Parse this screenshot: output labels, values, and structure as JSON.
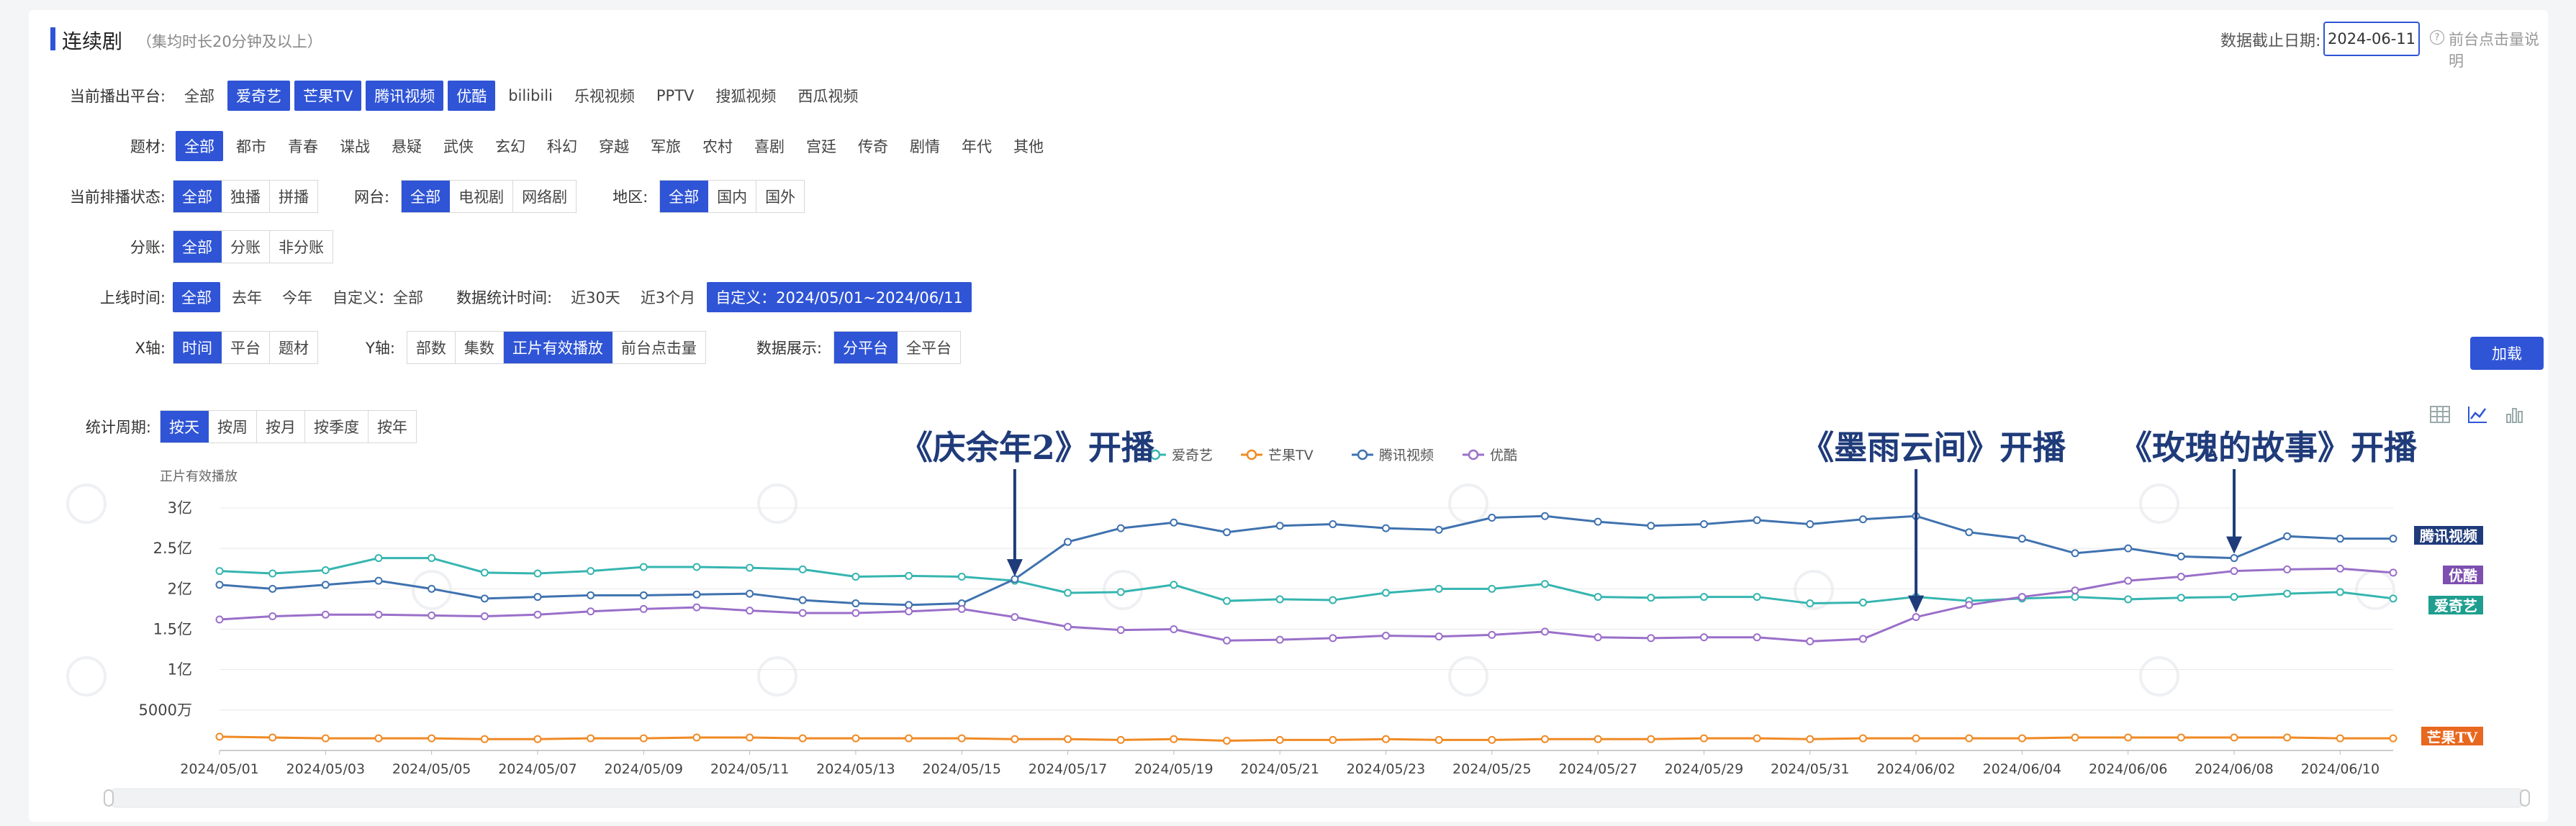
{
  "header": {
    "title": "连续剧",
    "subtitle": "（集均时长20分钟及以上）",
    "date_label": "数据截止日期:",
    "date_value": "2024-06-11",
    "help_text": "前台点击量说明"
  },
  "filters": {
    "platform": {
      "label": "当前播出平台:",
      "options": [
        {
          "text": "全部",
          "selected": false
        },
        {
          "text": "爱奇艺",
          "selected": true
        },
        {
          "text": "芒果TV",
          "selected": true
        },
        {
          "text": "腾讯视频",
          "selected": true
        },
        {
          "text": "优酷",
          "selected": true
        },
        {
          "text": "bilibili",
          "selected": false
        },
        {
          "text": "乐视视频",
          "selected": false
        },
        {
          "text": "PPTV",
          "selected": false
        },
        {
          "text": "搜狐视频",
          "selected": false
        },
        {
          "text": "西瓜视频",
          "selected": false
        }
      ]
    },
    "genre": {
      "label": "题材:",
      "options": [
        {
          "text": "全部",
          "selected": true
        },
        {
          "text": "都市",
          "selected": false
        },
        {
          "text": "青春",
          "selected": false
        },
        {
          "text": "谍战",
          "selected": false
        },
        {
          "text": "悬疑",
          "selected": false
        },
        {
          "text": "武侠",
          "selected": false
        },
        {
          "text": "玄幻",
          "selected": false
        },
        {
          "text": "科幻",
          "selected": false
        },
        {
          "text": "穿越",
          "selected": false
        },
        {
          "text": "军旅",
          "selected": false
        },
        {
          "text": "农村",
          "selected": false
        },
        {
          "text": "喜剧",
          "selected": false
        },
        {
          "text": "宫廷",
          "selected": false
        },
        {
          "text": "传奇",
          "selected": false
        },
        {
          "text": "剧情",
          "selected": false
        },
        {
          "text": "年代",
          "selected": false
        },
        {
          "text": "其他",
          "selected": false
        }
      ]
    },
    "status": {
      "label": "当前排播状态:",
      "options": [
        {
          "text": "全部",
          "selected": true
        },
        {
          "text": "独播",
          "selected": false
        },
        {
          "text": "拼播",
          "selected": false
        }
      ],
      "network_label": "网台:",
      "network_options": [
        {
          "text": "全部",
          "selected": true
        },
        {
          "text": "电视剧",
          "selected": false
        },
        {
          "text": "网络剧",
          "selected": false
        }
      ],
      "region_label": "地区:",
      "region_options": [
        {
          "text": "全部",
          "selected": true
        },
        {
          "text": "国内",
          "selected": false
        },
        {
          "text": "国外",
          "selected": false
        }
      ]
    },
    "split": {
      "label": "分账:",
      "options": [
        {
          "text": "全部",
          "selected": true
        },
        {
          "text": "分账",
          "selected": false
        },
        {
          "text": "非分账",
          "selected": false
        }
      ]
    },
    "online": {
      "label": "上线时间:",
      "options": [
        {
          "text": "全部",
          "selected": true
        },
        {
          "text": "去年",
          "selected": false
        },
        {
          "text": "今年",
          "selected": false
        },
        {
          "text": "自定义：全部",
          "selected": false
        }
      ],
      "stat_label": "数据统计时间:",
      "stat_options": [
        {
          "text": "近30天",
          "selected": false
        },
        {
          "text": "近3个月",
          "selected": false
        },
        {
          "text": "自定义：2024/05/01~2024/06/11",
          "selected": true
        }
      ]
    },
    "axes": {
      "x_label": "X轴:",
      "x_options": [
        {
          "text": "时间",
          "selected": true
        },
        {
          "text": "平台",
          "selected": false
        },
        {
          "text": "题材",
          "selected": false
        }
      ],
      "y_label": "Y轴:",
      "y_options": [
        {
          "text": "部数",
          "selected": false
        },
        {
          "text": "集数",
          "selected": false
        },
        {
          "text": "正片有效播放",
          "selected": true
        },
        {
          "text": "前台点击量",
          "selected": false
        }
      ],
      "display_label": "数据展示:",
      "display_options": [
        {
          "text": "分平台",
          "selected": true
        },
        {
          "text": "全平台",
          "selected": false
        }
      ]
    },
    "period": {
      "label": "统计周期:",
      "options": [
        {
          "text": "按天",
          "selected": true
        },
        {
          "text": "按周",
          "selected": false
        },
        {
          "text": "按月",
          "selected": false
        },
        {
          "text": "按季度",
          "selected": false
        },
        {
          "text": "按年",
          "selected": false
        }
      ]
    },
    "load_label": "加载"
  },
  "view_icons": [
    "table-view-icon",
    "line-chart-icon",
    "bar-chart-icon"
  ],
  "chart_data": {
    "type": "line",
    "title": "",
    "ylabel": "正片有效播放",
    "xlabel": "",
    "ylim": [
      0,
      300000000
    ],
    "ytick_labels": [
      "3亿",
      "2.5亿",
      "2亿",
      "1.5亿",
      "1亿",
      "5000万"
    ],
    "ytick_values": [
      300000000,
      250000000,
      200000000,
      150000000,
      100000000,
      50000000
    ],
    "x": [
      "2024/05/01",
      "2024/05/02",
      "2024/05/03",
      "2024/05/04",
      "2024/05/05",
      "2024/05/06",
      "2024/05/07",
      "2024/05/08",
      "2024/05/09",
      "2024/05/10",
      "2024/05/11",
      "2024/05/12",
      "2024/05/13",
      "2024/05/14",
      "2024/05/15",
      "2024/05/16",
      "2024/05/17",
      "2024/05/18",
      "2024/05/19",
      "2024/05/20",
      "2024/05/21",
      "2024/05/22",
      "2024/05/23",
      "2024/05/24",
      "2024/05/25",
      "2024/05/26",
      "2024/05/27",
      "2024/05/28",
      "2024/05/29",
      "2024/05/30",
      "2024/05/31",
      "2024/06/01",
      "2024/06/02",
      "2024/06/03",
      "2024/06/04",
      "2024/06/05",
      "2024/06/06",
      "2024/06/07",
      "2024/06/08",
      "2024/06/09",
      "2024/06/10",
      "2024/06/11"
    ],
    "xtick_labels": [
      "2024/05/01",
      "2024/05/03",
      "2024/05/05",
      "2024/05/07",
      "2024/05/09",
      "2024/05/11",
      "2024/05/13",
      "2024/05/15",
      "2024/05/17",
      "2024/05/19",
      "2024/05/21",
      "2024/05/23",
      "2024/05/25",
      "2024/05/27",
      "2024/05/29",
      "2024/05/31",
      "2024/06/02",
      "2024/06/04",
      "2024/06/06",
      "2024/06/08",
      "2024/06/10"
    ],
    "grid": true,
    "legend": "top",
    "series": [
      {
        "name": "爱奇艺",
        "color": "#36b5b0",
        "values": [
          222000000,
          219000000,
          223000000,
          238000000,
          238000000,
          220000000,
          219000000,
          222000000,
          227000000,
          227000000,
          226000000,
          224000000,
          215000000,
          216000000,
          215000000,
          210000000,
          195000000,
          196000000,
          205000000,
          185000000,
          187000000,
          186000000,
          195000000,
          200000000,
          200000000,
          206000000,
          190000000,
          189000000,
          190000000,
          190000000,
          182000000,
          183000000,
          190000000,
          185000000,
          188000000,
          190000000,
          187000000,
          189000000,
          190000000,
          194000000,
          196000000,
          188000000
        ]
      },
      {
        "name": "芒果TV",
        "color": "#f08a24",
        "values": [
          17000000,
          16000000,
          15000000,
          15000000,
          15000000,
          14000000,
          14000000,
          15000000,
          15000000,
          16000000,
          16000000,
          15000000,
          15000000,
          15000000,
          15000000,
          14000000,
          14000000,
          13000000,
          14000000,
          12000000,
          13000000,
          13000000,
          14000000,
          13000000,
          13000000,
          14000000,
          14000000,
          14000000,
          15000000,
          15000000,
          14000000,
          15000000,
          15000000,
          15000000,
          15000000,
          16000000,
          16000000,
          16000000,
          16000000,
          16000000,
          15000000,
          15000000
        ]
      },
      {
        "name": "腾讯视频",
        "color": "#3f72af",
        "values": [
          205000000,
          200000000,
          205000000,
          210000000,
          200000000,
          188000000,
          190000000,
          192000000,
          192000000,
          193000000,
          194000000,
          186000000,
          182000000,
          180000000,
          182000000,
          212000000,
          258000000,
          275000000,
          282000000,
          270000000,
          278000000,
          280000000,
          275000000,
          273000000,
          288000000,
          290000000,
          283000000,
          278000000,
          280000000,
          285000000,
          280000000,
          286000000,
          290000000,
          270000000,
          262000000,
          244000000,
          250000000,
          240000000,
          238000000,
          265000000,
          262000000,
          262000000
        ]
      },
      {
        "name": "优酷",
        "color": "#9a6fc9",
        "values": [
          162000000,
          166000000,
          168000000,
          168000000,
          167000000,
          166000000,
          168000000,
          172000000,
          175000000,
          177000000,
          173000000,
          170000000,
          170000000,
          172000000,
          175000000,
          165000000,
          153000000,
          149000000,
          150000000,
          136000000,
          137000000,
          139000000,
          142000000,
          141000000,
          143000000,
          147000000,
          140000000,
          139000000,
          140000000,
          140000000,
          135000000,
          138000000,
          165000000,
          180000000,
          190000000,
          198000000,
          210000000,
          215000000,
          222000000,
          224000000,
          225000000,
          220000000
        ]
      }
    ],
    "annotations": [
      {
        "text": "《庆余年2》开播",
        "x": "2024/05/16",
        "series": "爱奇艺"
      },
      {
        "text": "《墨雨云间》开播",
        "x": "2024/06/02",
        "series": "优酷"
      },
      {
        "text": "《玫瑰的故事》开播",
        "x": "2024/06/08",
        "series": "腾讯视频"
      }
    ],
    "end_tags": [
      {
        "text": "腾讯视频",
        "color": "#1f3b7a"
      },
      {
        "text": "优酷",
        "color": "#7d4fb0"
      },
      {
        "text": "爱奇艺",
        "color": "#1f9e8f"
      },
      {
        "text": "芒果TV",
        "color": "#e8681f"
      }
    ]
  }
}
